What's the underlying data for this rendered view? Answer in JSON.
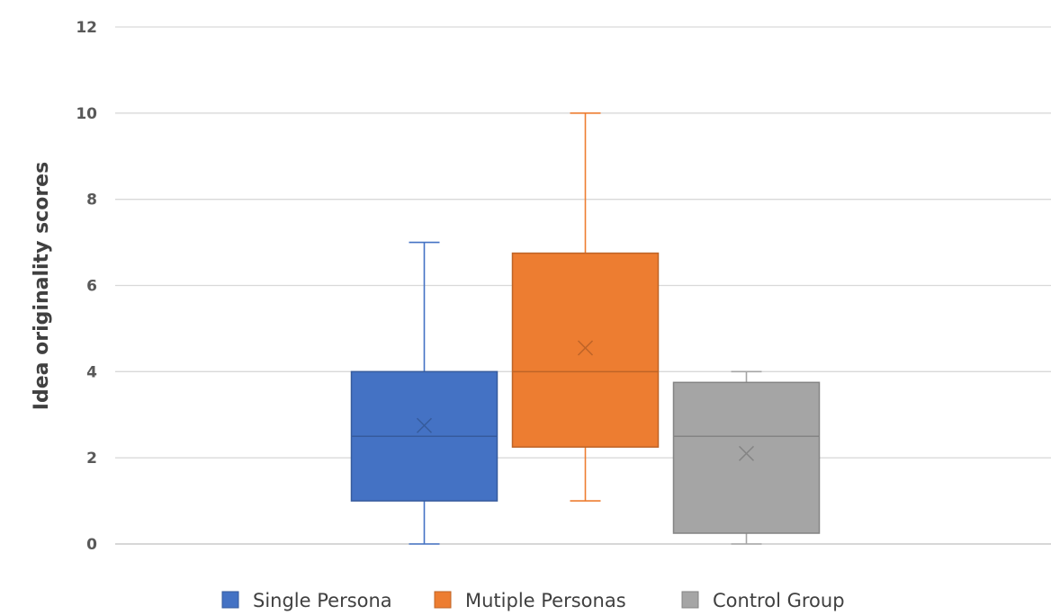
{
  "chart_data": {
    "type": "box",
    "title": "",
    "xlabel": "",
    "ylabel": "Idea originality scores",
    "ylim": [
      0,
      12
    ],
    "yticks": [
      0,
      2,
      4,
      6,
      8,
      10,
      12
    ],
    "grid": true,
    "legend_position": "bottom",
    "series": [
      {
        "name": "Single Persona",
        "color": "#4472C4",
        "min": 0,
        "q1": 1,
        "median": 2.5,
        "q3": 4,
        "max": 7,
        "mean": 2.75
      },
      {
        "name": "Mutiple Personas",
        "color": "#ED7D31",
        "min": 1,
        "q1": 2.25,
        "median": 4,
        "q3": 6.75,
        "max": 10,
        "mean": 4.55
      },
      {
        "name": "Control Group",
        "color": "#A5A5A5",
        "min": 0,
        "q1": 0.25,
        "median": 2.5,
        "q3": 3.75,
        "max": 4,
        "mean": 2.1
      }
    ]
  }
}
